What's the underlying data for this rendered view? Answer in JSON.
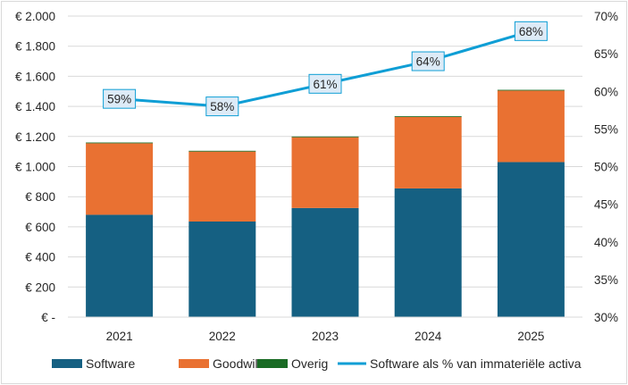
{
  "chart_data": {
    "type": "bar",
    "stacked": true,
    "categories": [
      "2021",
      "2022",
      "2023",
      "2024",
      "2025"
    ],
    "series": [
      {
        "name": "Software",
        "type": "bar",
        "axis": "left",
        "color": "#156082",
        "values": [
          680,
          635,
          725,
          855,
          1030
        ]
      },
      {
        "name": "Goodwill",
        "type": "bar",
        "axis": "left",
        "color": "#e97132",
        "values": [
          475,
          465,
          470,
          475,
          475
        ]
      },
      {
        "name": "Overig",
        "type": "bar",
        "axis": "left",
        "color": "#196b24",
        "values": [
          5,
          5,
          5,
          5,
          5
        ]
      },
      {
        "name": "Software als % van immateriële activa",
        "type": "line",
        "axis": "right",
        "color": "#0f9ed5",
        "values": [
          59,
          58,
          61,
          64,
          68
        ],
        "data_labels": [
          "59%",
          "58%",
          "61%",
          "64%",
          "68%"
        ]
      }
    ],
    "y_left": {
      "range": [
        0,
        2000
      ],
      "ticks": [
        0,
        200,
        400,
        600,
        800,
        1000,
        1200,
        1400,
        1600,
        1800,
        2000
      ],
      "tick_labels": [
        "€ -",
        "€ 200",
        "€ 400",
        "€ 600",
        "€ 800",
        "€ 1.000",
        "€ 1.200",
        "€ 1.400",
        "€ 1.600",
        "€ 1.800",
        "€ 2.000"
      ]
    },
    "y_right": {
      "range": [
        30,
        70
      ],
      "ticks": [
        30,
        35,
        40,
        45,
        50,
        55,
        60,
        65,
        70
      ],
      "tick_labels": [
        "30%",
        "35%",
        "40%",
        "45%",
        "50%",
        "55%",
        "60%",
        "65%",
        "70%"
      ]
    },
    "grid": true,
    "legend": "bottom",
    "title": "",
    "xlabel": "",
    "ylabel": ""
  }
}
